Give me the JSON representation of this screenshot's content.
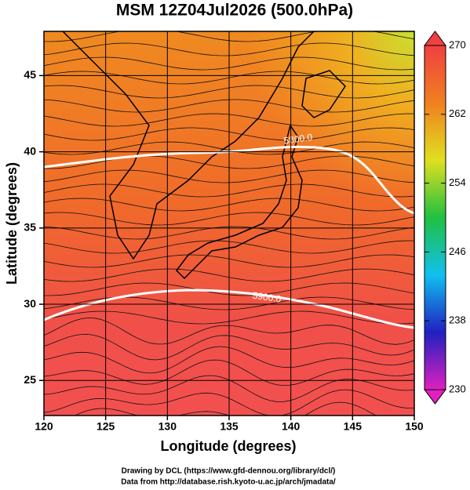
{
  "header": {
    "title": "MSM 12Z04Jul2026 (500.0hPa)"
  },
  "map": {
    "xlabel": "Longitude (degrees)",
    "ylabel": "Latitude  (degrees)",
    "xlim": [
      120,
      150
    ],
    "ylim": [
      22.7,
      47.9
    ],
    "xticks": [
      120,
      125,
      130,
      135,
      140,
      145,
      150
    ],
    "yticks": [
      25,
      30,
      35,
      40,
      45
    ],
    "contour_labels": [
      "5800.0",
      "5900.0"
    ]
  },
  "colorbar": {
    "clim": [
      230,
      270
    ],
    "ticks": [
      230,
      238,
      246,
      254,
      262,
      270
    ],
    "colors": [
      "#e020c0",
      "#2020c0",
      "#10c0f0",
      "#20c040",
      "#e0e020",
      "#f08020",
      "#f04040"
    ]
  },
  "footer": {
    "lines": [
      "Drawing by DCL (https://www.gfd-dennou.org/library/dcl/)",
      "Data from http://database.rish.kyoto-u.ac.jp/arch/jmadata/"
    ]
  }
}
